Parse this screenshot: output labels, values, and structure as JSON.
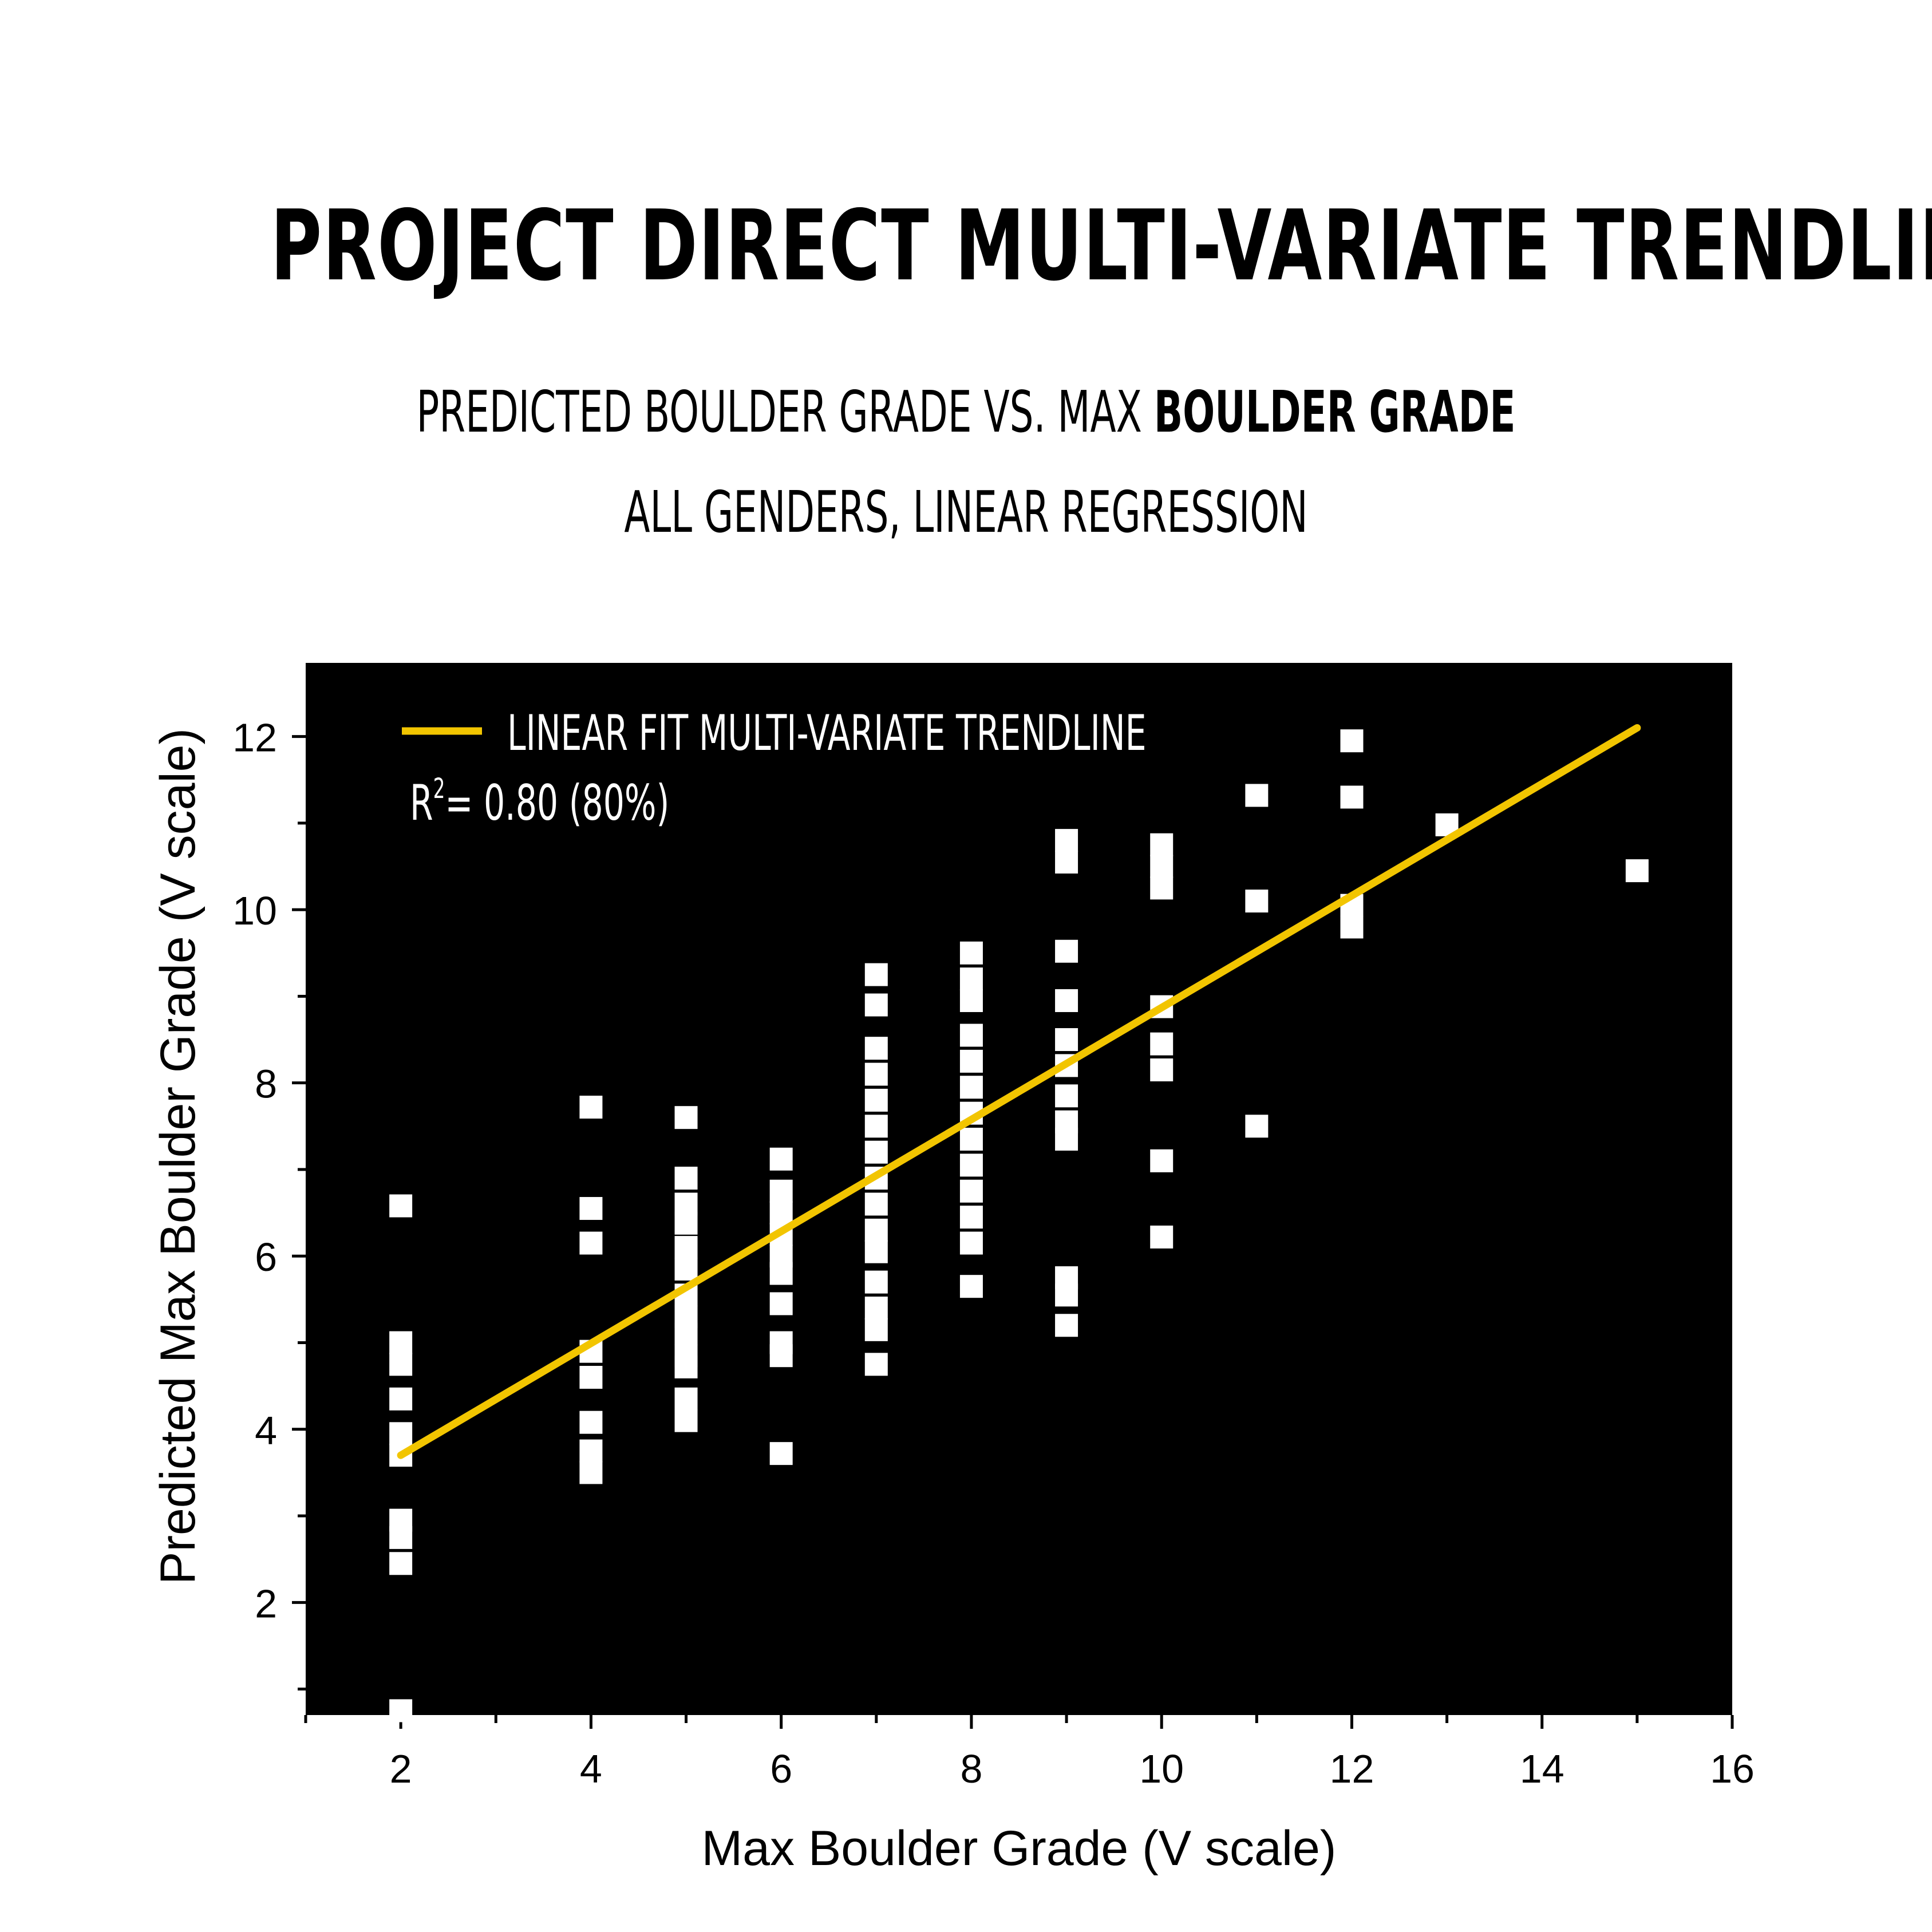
{
  "header": {
    "title": "PROJECT DIRECT MULTI-VARIATE TRENDLINE",
    "subtitle_line1_prefix": "PREDICTED BOULDER GRADE VS. MAX ",
    "subtitle_line1_bold": "BOULDER GRADE",
    "subtitle_line2": "ALL GENDERS, LINEAR REGRESSION"
  },
  "chart_data": {
    "type": "scatter",
    "xlabel": "Max Boulder Grade (V scale)",
    "ylabel": "Predicted Max Boulder Grade (V scale)",
    "xlim": [
      1,
      16
    ],
    "ylim": [
      0.7,
      12.85
    ],
    "xticks": [
      2,
      4,
      6,
      8,
      10,
      12,
      14,
      16
    ],
    "yticks": [
      2,
      4,
      6,
      8,
      10,
      12
    ],
    "plot_background": "#000000",
    "point_color": "#ffffff",
    "trend_color": "#f2c500",
    "grid": false,
    "legend_position": "top-left",
    "legend": {
      "label": "LINEAR FIT MULTI-VARIATE TRENDLINE",
      "r2_label": "R",
      "r2_exponent": "2",
      "r2_value": "= 0.80 (80%)"
    },
    "trendline": {
      "x": [
        2,
        15
      ],
      "y": [
        3.7,
        12.1
      ]
    },
    "points": [
      [
        2,
        6.58
      ],
      [
        2,
        5.0
      ],
      [
        2,
        4.75
      ],
      [
        2,
        4.35
      ],
      [
        2,
        3.95
      ],
      [
        2,
        3.7
      ],
      [
        2,
        2.95
      ],
      [
        2,
        2.75
      ],
      [
        2,
        2.45
      ],
      [
        2,
        0.75
      ],
      [
        4,
        7.72
      ],
      [
        4,
        6.55
      ],
      [
        4,
        6.15
      ],
      [
        4,
        4.9
      ],
      [
        4,
        4.6
      ],
      [
        4,
        4.08
      ],
      [
        4,
        3.75
      ],
      [
        4,
        3.5
      ],
      [
        5,
        7.6
      ],
      [
        5,
        6.9
      ],
      [
        5,
        6.6
      ],
      [
        5,
        6.38
      ],
      [
        5,
        6.1
      ],
      [
        5,
        5.85
      ],
      [
        5,
        5.55
      ],
      [
        5,
        5.3
      ],
      [
        5,
        5.1
      ],
      [
        5,
        4.85
      ],
      [
        5,
        4.72
      ],
      [
        5,
        4.35
      ],
      [
        5,
        4.1
      ],
      [
        6,
        7.12
      ],
      [
        6,
        6.75
      ],
      [
        6,
        6.5
      ],
      [
        6,
        6.25
      ],
      [
        6,
        6.0
      ],
      [
        6,
        5.8
      ],
      [
        6,
        5.45
      ],
      [
        6,
        5.0
      ],
      [
        6,
        4.85
      ],
      [
        6,
        3.72
      ],
      [
        7,
        9.25
      ],
      [
        7,
        8.9
      ],
      [
        7,
        8.4
      ],
      [
        7,
        8.1
      ],
      [
        7,
        7.8
      ],
      [
        7,
        7.5
      ],
      [
        7,
        7.2
      ],
      [
        7,
        6.9
      ],
      [
        7,
        6.6
      ],
      [
        7,
        6.3
      ],
      [
        7,
        6.05
      ],
      [
        7,
        5.7
      ],
      [
        7,
        5.4
      ],
      [
        7,
        5.15
      ],
      [
        7,
        4.75
      ],
      [
        8,
        9.5
      ],
      [
        8,
        9.2
      ],
      [
        8,
        8.95
      ],
      [
        8,
        8.55
      ],
      [
        8,
        8.25
      ],
      [
        8,
        7.95
      ],
      [
        8,
        7.65
      ],
      [
        8,
        7.35
      ],
      [
        8,
        7.05
      ],
      [
        8,
        6.75
      ],
      [
        8,
        6.45
      ],
      [
        8,
        6.15
      ],
      [
        8,
        5.65
      ],
      [
        9,
        10.8
      ],
      [
        9,
        10.55
      ],
      [
        9,
        9.52
      ],
      [
        9,
        8.95
      ],
      [
        9,
        8.5
      ],
      [
        9,
        8.2
      ],
      [
        9,
        7.85
      ],
      [
        9,
        7.55
      ],
      [
        9,
        7.35
      ],
      [
        9,
        5.75
      ],
      [
        9,
        5.55
      ],
      [
        9,
        5.2
      ],
      [
        10,
        10.75
      ],
      [
        10,
        10.5
      ],
      [
        10,
        10.25
      ],
      [
        10,
        8.88
      ],
      [
        10,
        8.45
      ],
      [
        10,
        8.15
      ],
      [
        10,
        7.1
      ],
      [
        10,
        6.22
      ],
      [
        11,
        11.32
      ],
      [
        11,
        10.1
      ],
      [
        11,
        7.5
      ],
      [
        12,
        11.95
      ],
      [
        12,
        11.3
      ],
      [
        12,
        10.05
      ],
      [
        12,
        9.8
      ],
      [
        13,
        10.98
      ],
      [
        15,
        10.45
      ]
    ]
  }
}
